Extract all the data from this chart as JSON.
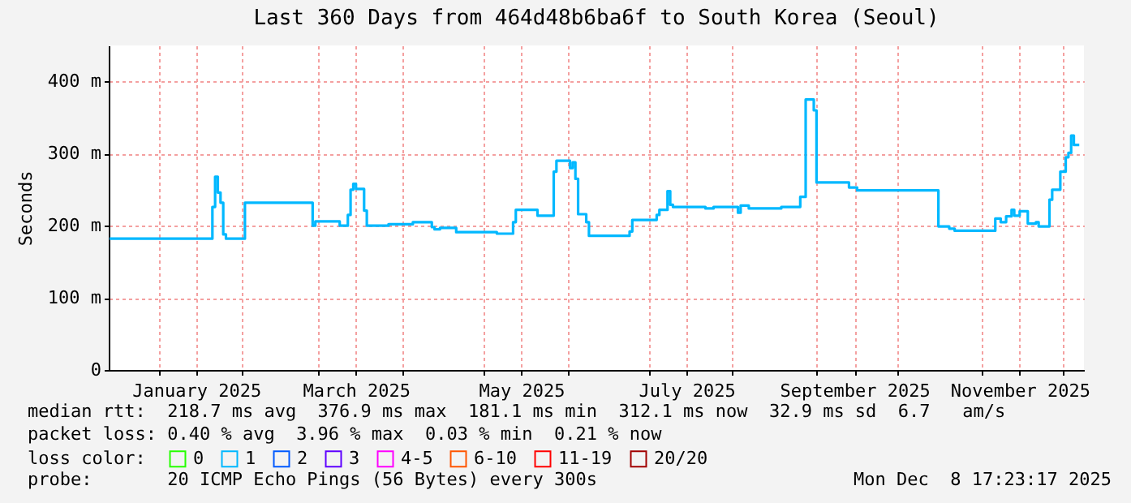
{
  "chart_data": {
    "type": "step",
    "title": "Last 360 Days from 464d48b6ba6f to South Korea (Seoul)",
    "ylabel": "Seconds",
    "x": [
      "2024-12-14",
      "2025-01-21",
      "2025-01-22",
      "2025-01-23",
      "2025-01-24",
      "2025-01-25",
      "2025-01-26",
      "2025-02-02",
      "2025-02-27",
      "2025-02-28",
      "2025-03-09",
      "2025-03-12",
      "2025-03-13",
      "2025-03-14",
      "2025-03-15",
      "2025-03-18",
      "2025-03-19",
      "2025-03-27",
      "2025-04-05",
      "2025-04-12",
      "2025-04-13",
      "2025-04-15",
      "2025-04-21",
      "2025-05-06",
      "2025-05-12",
      "2025-05-13",
      "2025-05-21",
      "2025-05-27",
      "2025-05-28",
      "2025-06-02",
      "2025-06-03",
      "2025-06-04",
      "2025-06-05",
      "2025-06-08",
      "2025-06-09",
      "2025-06-24",
      "2025-06-25",
      "2025-07-04",
      "2025-07-05",
      "2025-07-08",
      "2025-07-09",
      "2025-07-10",
      "2025-07-22",
      "2025-07-25",
      "2025-08-03",
      "2025-08-04",
      "2025-08-07",
      "2025-08-19",
      "2025-08-26",
      "2025-08-28",
      "2025-08-31",
      "2025-09-01",
      "2025-09-13",
      "2025-09-16",
      "2025-10-15",
      "2025-10-16",
      "2025-10-20",
      "2025-10-22",
      "2025-11-06",
      "2025-11-08",
      "2025-11-10",
      "2025-11-12",
      "2025-11-13",
      "2025-11-15",
      "2025-11-18",
      "2025-11-21",
      "2025-11-22",
      "2025-11-26",
      "2025-11-27",
      "2025-11-30",
      "2025-12-02",
      "2025-12-03",
      "2025-12-04",
      "2025-12-05",
      "2025-12-07"
    ],
    "series": [
      {
        "name": "0",
        "color": "#26ff00",
        "values": [
          null,
          null,
          null,
          null,
          null,
          null,
          null,
          null,
          null,
          null,
          null,
          null,
          null,
          null,
          null,
          null,
          null,
          null,
          null,
          null,
          null,
          null,
          null,
          null,
          null,
          null,
          null,
          null,
          null,
          null,
          null,
          null,
          null,
          null,
          null,
          null,
          null,
          null,
          null,
          null,
          null,
          null,
          null,
          null,
          null,
          null,
          null,
          null,
          null,
          null,
          null,
          null,
          null,
          null,
          null,
          null,
          null,
          null,
          null,
          null,
          null,
          null,
          null,
          null,
          null,
          null,
          null,
          null,
          null,
          null,
          null,
          null,
          null,
          null,
          null
        ]
      },
      {
        "name": "1",
        "color": "#00b8ff",
        "values": [
          182,
          226,
          268,
          246,
          232,
          188,
          182,
          232,
          200,
          206,
          200,
          215,
          250,
          258,
          251,
          221,
          200,
          202,
          205,
          198,
          195,
          197,
          191,
          189,
          205,
          222,
          214,
          275,
          290,
          280,
          288,
          265,
          216,
          205,
          186,
          192,
          208,
          215,
          222,
          248,
          229,
          226,
          224,
          226,
          218,
          228,
          224,
          226,
          240,
          375,
          360,
          260,
          253,
          249,
          249,
          199,
          196,
          193,
          210,
          205,
          213,
          222,
          214,
          220,
          203,
          205,
          199,
          236,
          250,
          275,
          295,
          301,
          325,
          312,
          312
        ]
      },
      {
        "name": "2",
        "color": "#0059ff",
        "values": [
          null,
          null,
          null,
          null,
          null,
          null,
          null,
          null,
          null,
          null,
          null,
          null,
          null,
          null,
          null,
          null,
          null,
          null,
          null,
          null,
          null,
          null,
          null,
          null,
          null,
          null,
          null,
          null,
          null,
          null,
          null,
          null,
          null,
          null,
          null,
          null,
          null,
          null,
          null,
          null,
          null,
          null,
          null,
          null,
          null,
          null,
          null,
          null,
          null,
          null,
          null,
          null,
          null,
          null,
          null,
          null,
          null,
          null,
          null,
          null,
          null,
          null,
          null,
          null,
          null,
          null,
          null,
          null,
          null,
          null,
          null,
          null,
          null,
          null,
          null
        ]
      },
      {
        "name": "3",
        "color": "#5e00ff",
        "values": [
          null,
          null,
          null,
          null,
          null,
          null,
          null,
          null,
          null,
          null,
          null,
          null,
          null,
          null,
          null,
          null,
          null,
          null,
          null,
          null,
          null,
          null,
          null,
          null,
          null,
          null,
          null,
          null,
          null,
          null,
          null,
          null,
          null,
          null,
          null,
          null,
          null,
          null,
          null,
          null,
          null,
          null,
          null,
          null,
          null,
          null,
          null,
          null,
          null,
          null,
          null,
          null,
          null,
          null,
          null,
          null,
          null,
          null,
          null,
          null,
          null,
          null,
          null,
          null,
          null,
          null,
          null,
          null,
          null,
          null,
          null,
          null,
          null,
          null,
          null
        ]
      },
      {
        "name": "4-5",
        "color": "#ff00ff",
        "values": [
          null,
          null,
          null,
          null,
          null,
          null,
          null,
          null,
          null,
          null,
          null,
          null,
          null,
          null,
          null,
          null,
          null,
          null,
          null,
          null,
          null,
          null,
          null,
          null,
          null,
          null,
          null,
          null,
          null,
          null,
          null,
          null,
          null,
          null,
          null,
          null,
          null,
          null,
          null,
          null,
          null,
          null,
          null,
          null,
          null,
          null,
          null,
          null,
          null,
          null,
          null,
          null,
          null,
          null,
          null,
          null,
          null,
          null,
          null,
          null,
          null,
          null,
          null,
          null,
          null,
          null,
          null,
          null,
          null,
          null,
          null,
          null,
          null,
          null,
          null
        ]
      },
      {
        "name": "6-10",
        "color": "#ff5500",
        "values": [
          null,
          null,
          null,
          null,
          null,
          null,
          null,
          null,
          null,
          null,
          null,
          null,
          null,
          null,
          null,
          null,
          null,
          null,
          null,
          null,
          null,
          null,
          null,
          null,
          null,
          null,
          null,
          null,
          null,
          null,
          null,
          null,
          null,
          null,
          null,
          null,
          null,
          null,
          null,
          null,
          null,
          null,
          null,
          null,
          null,
          null,
          null,
          null,
          null,
          null,
          null,
          null,
          null,
          null,
          null,
          null,
          null,
          null,
          null,
          null,
          null,
          null,
          null,
          null,
          null,
          null,
          null,
          null,
          null,
          null,
          null,
          null,
          null,
          null,
          null
        ]
      },
      {
        "name": "11-19",
        "color": "#ff0000",
        "values": [
          null,
          null,
          null,
          null,
          null,
          null,
          null,
          null,
          null,
          null,
          null,
          null,
          null,
          null,
          null,
          null,
          null,
          null,
          null,
          null,
          null,
          null,
          null,
          null,
          null,
          null,
          null,
          null,
          null,
          null,
          null,
          null,
          null,
          null,
          null,
          null,
          null,
          null,
          null,
          null,
          null,
          null,
          null,
          null,
          null,
          null,
          null,
          null,
          null,
          null,
          null,
          null,
          null,
          null,
          null,
          null,
          null,
          null,
          null,
          null,
          null,
          null,
          null,
          null,
          null,
          null,
          null,
          null,
          null,
          null,
          null,
          null,
          null,
          null,
          null
        ]
      },
      {
        "name": "20/20",
        "color": "#a10000",
        "values": [
          null,
          null,
          null,
          null,
          null,
          null,
          null,
          null,
          null,
          null,
          null,
          null,
          null,
          null,
          null,
          null,
          null,
          null,
          null,
          null,
          null,
          null,
          null,
          null,
          null,
          null,
          null,
          null,
          null,
          null,
          null,
          null,
          null,
          null,
          null,
          null,
          null,
          null,
          null,
          null,
          null,
          null,
          null,
          null,
          null,
          null,
          null,
          null,
          null,
          null,
          null,
          null,
          null,
          null,
          null,
          null,
          null,
          null,
          null,
          null,
          null,
          null,
          null,
          null,
          null,
          null,
          null,
          null,
          null,
          null,
          null,
          null,
          null,
          null,
          null
        ]
      }
    ],
    "legend_title": "loss color:",
    "legend": "bottom left",
    "xlim": [
      "2024-12-13T17:23",
      "2025-12-08T17:23"
    ],
    "xticks": [
      {
        "value": "2025-01-01",
        "label": null
      },
      {
        "value": "2025-01-15",
        "label": "January 2025"
      },
      {
        "value": "2025-02-01",
        "label": null
      },
      {
        "value": "2025-03-01",
        "label": null
      },
      {
        "value": "2025-03-15",
        "label": "March 2025"
      },
      {
        "value": "2025-04-01",
        "label": null
      },
      {
        "value": "2025-05-01",
        "label": null
      },
      {
        "value": "2025-05-15",
        "label": "May 2025"
      },
      {
        "value": "2025-06-01",
        "label": null
      },
      {
        "value": "2025-07-01",
        "label": null
      },
      {
        "value": "2025-07-15",
        "label": "July 2025"
      },
      {
        "value": "2025-08-01",
        "label": null
      },
      {
        "value": "2025-09-01",
        "label": null
      },
      {
        "value": "2025-09-15",
        "label": "September 2025"
      },
      {
        "value": "2025-10-01",
        "label": null
      },
      {
        "value": "2025-11-01",
        "label": null
      },
      {
        "value": "2025-11-15",
        "label": "November 2025"
      },
      {
        "value": "2025-12-01",
        "label": null
      }
    ],
    "ylim": [
      0,
      450
    ],
    "yticks": [
      0,
      {
        "value": 100,
        "label": "100 m"
      },
      {
        "value": 200,
        "label": "200 m"
      },
      {
        "value": 300,
        "label": "300 m"
      },
      {
        "value": 400,
        "label": "400 m"
      }
    ],
    "grid": true,
    "annotations": [
      "median rtt:  218.7 ms avg  376.9 ms max  181.1 ms min  312.1 ms now  32.9 ms sd  6.7   am/s",
      "packet loss: 0.40 % avg  3.96 % max  0.03 % min  0.21 % now",
      "probe:       20 ICMP Echo Pings (56 Bytes) every 300s",
      "Mon Dec  8 17:23:17 2025"
    ]
  }
}
